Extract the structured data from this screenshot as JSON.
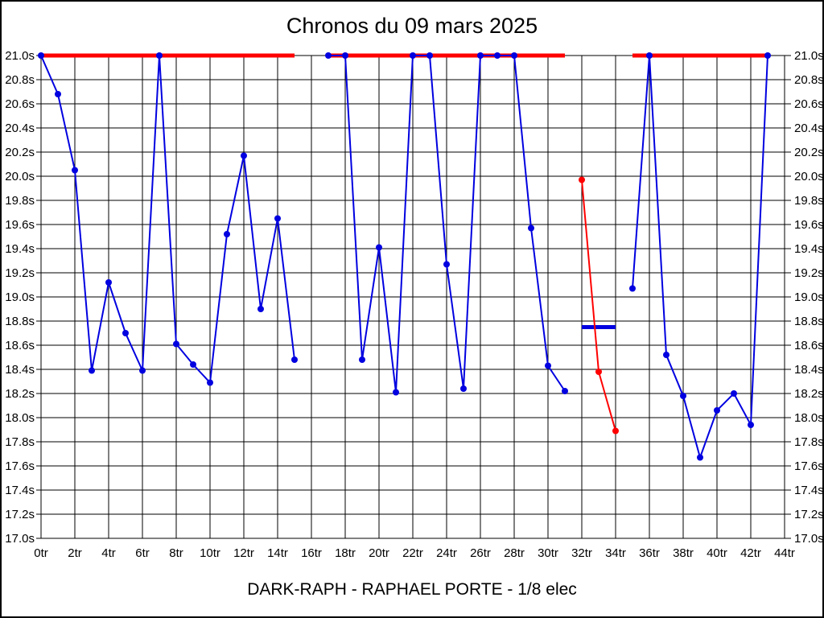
{
  "page": {
    "title": "Chronos du 09 mars 2025",
    "caption": "DARK-RAPH - RAPHAEL PORTE - 1/8 elec"
  },
  "chart_data": {
    "type": "line",
    "title": "Chronos du 09 mars 2025",
    "x_unit": "tr",
    "y_unit": "s",
    "xlim": [
      0,
      44
    ],
    "ylim": [
      17.0,
      21.0
    ],
    "grid": true,
    "x_ticks": [
      0,
      2,
      4,
      6,
      8,
      10,
      12,
      14,
      16,
      18,
      20,
      22,
      24,
      26,
      28,
      30,
      32,
      34,
      36,
      38,
      40,
      42,
      44
    ],
    "x_tick_labels": [
      "0tr",
      "2tr",
      "4tr",
      "6tr",
      "8tr",
      "10tr",
      "12tr",
      "14tr",
      "16tr",
      "18tr",
      "20tr",
      "22tr",
      "24tr",
      "26tr",
      "28tr",
      "30tr",
      "32tr",
      "34tr",
      "36tr",
      "38tr",
      "40tr",
      "42tr",
      "44tr"
    ],
    "y_ticks": [
      21.0,
      20.8,
      20.6,
      20.4,
      20.2,
      20.0,
      19.8,
      19.6,
      19.4,
      19.2,
      19.0,
      18.8,
      18.6,
      18.4,
      18.2,
      18.0,
      17.8,
      17.6,
      17.4,
      17.2,
      17.0
    ],
    "y_tick_labels": [
      "21.0s",
      "20.8s",
      "20.6s",
      "20.4s",
      "20.2s",
      "20.0s",
      "19.8s",
      "19.6s",
      "19.4s",
      "19.2s",
      "19.0s",
      "18.8s",
      "18.6s",
      "18.4s",
      "18.2s",
      "18.0s",
      "17.8s",
      "17.6s",
      "17.4s",
      "17.2s",
      "17.0s"
    ],
    "series": [
      {
        "name": "lap-times-blue-run-1",
        "color": "#0000e0",
        "marker": "circle",
        "x": [
          0,
          1,
          2,
          3,
          4,
          5,
          6,
          7,
          8,
          9,
          10,
          11,
          12,
          13,
          14,
          15
        ],
        "y": [
          21.0,
          20.68,
          20.05,
          18.39,
          19.12,
          18.7,
          18.39,
          21.0,
          18.61,
          18.44,
          18.29,
          19.52,
          20.17,
          18.9,
          19.65,
          18.48
        ]
      },
      {
        "name": "lap-times-blue-run-2",
        "color": "#0000e0",
        "marker": "circle",
        "x": [
          17,
          18,
          19,
          20,
          21,
          22,
          23,
          24,
          25,
          26,
          27,
          28,
          29,
          30,
          31
        ],
        "y": [
          21.0,
          21.0,
          18.48,
          19.41,
          18.21,
          21.0,
          21.0,
          19.27,
          18.24,
          21.0,
          21.0,
          21.0,
          19.57,
          18.43,
          18.22
        ]
      },
      {
        "name": "lap-times-blue-run-3",
        "color": "#0000e0",
        "marker": "circle",
        "x": [
          35,
          36,
          37,
          38,
          39,
          40,
          41,
          42,
          43
        ],
        "y": [
          19.07,
          21.0,
          18.52,
          18.18,
          17.67,
          18.06,
          18.2,
          17.94,
          21.0
        ]
      },
      {
        "name": "lap-times-red",
        "color": "#ff0000",
        "marker": "circle",
        "x": [
          32,
          33,
          34
        ],
        "y": [
          19.97,
          18.38,
          17.89
        ]
      }
    ],
    "overlays": [
      {
        "name": "red-ceiling-segment-1",
        "type": "hline",
        "y": 21.0,
        "x0": 0,
        "x1": 15,
        "color": "#ff0000",
        "width": 5
      },
      {
        "name": "red-ceiling-segment-2",
        "type": "hline",
        "y": 21.0,
        "x0": 17,
        "x1": 31,
        "color": "#ff0000",
        "width": 5
      },
      {
        "name": "red-ceiling-segment-3",
        "type": "hline",
        "y": 21.0,
        "x0": 35,
        "x1": 43,
        "color": "#ff0000",
        "width": 5
      },
      {
        "name": "blue-average-bar",
        "type": "hline",
        "y": 18.75,
        "x0": 32,
        "x1": 34,
        "color": "#0000e0",
        "width": 5
      }
    ]
  }
}
